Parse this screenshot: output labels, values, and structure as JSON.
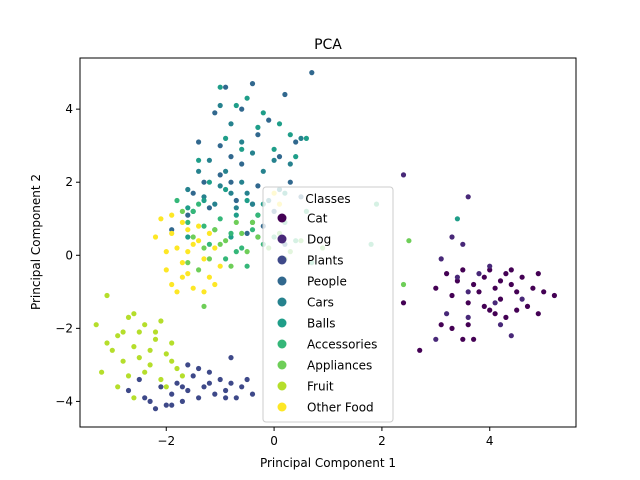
{
  "chart_data": {
    "type": "scatter",
    "title": "PCA",
    "xlabel": "Principal Component 1",
    "ylabel": "Principal Component 2",
    "xlim": [
      -3.6,
      5.6
    ],
    "ylim": [
      -4.7,
      5.4
    ],
    "xticks": [
      -2,
      0,
      2,
      4
    ],
    "yticks": [
      -4,
      -2,
      0,
      2,
      4
    ],
    "grid": false,
    "legend": {
      "title": "Classes",
      "placement": "center"
    },
    "series": [
      {
        "name": "Cat",
        "color": "#440154",
        "points": [
          [
            3.0,
            -0.9
          ],
          [
            3.2,
            -0.5
          ],
          [
            3.3,
            -1.1
          ],
          [
            3.4,
            -0.7
          ],
          [
            3.5,
            -0.4
          ],
          [
            3.6,
            -1.3
          ],
          [
            3.7,
            -0.8
          ],
          [
            3.8,
            -1.0
          ],
          [
            3.9,
            -0.6
          ],
          [
            4.0,
            -0.4
          ],
          [
            4.0,
            -1.5
          ],
          [
            4.1,
            -0.9
          ],
          [
            4.2,
            -1.2
          ],
          [
            4.3,
            -0.5
          ],
          [
            4.3,
            -1.7
          ],
          [
            4.4,
            -0.8
          ],
          [
            4.5,
            -1.0
          ],
          [
            4.6,
            -0.6
          ],
          [
            4.7,
            -1.4
          ],
          [
            4.8,
            -0.9
          ],
          [
            4.9,
            -0.5
          ],
          [
            5.0,
            -1.0
          ],
          [
            5.2,
            -1.1
          ],
          [
            4.5,
            -1.5
          ],
          [
            4.1,
            -1.6
          ],
          [
            3.6,
            -1.9
          ],
          [
            3.5,
            -2.3
          ],
          [
            3.1,
            -1.9
          ],
          [
            2.7,
            -2.6
          ],
          [
            4.9,
            -1.6
          ],
          [
            3.9,
            -1.4
          ],
          [
            4.4,
            -0.4
          ],
          [
            3.7,
            -2.3
          ],
          [
            2.4,
            -1.3
          ],
          [
            4.2,
            -0.7
          ],
          [
            3.3,
            -2.0
          ]
        ]
      },
      {
        "name": "Dog",
        "color": "#482878",
        "points": [
          [
            2.4,
            2.2
          ],
          [
            3.6,
            1.6
          ],
          [
            3.3,
            0.5
          ],
          [
            3.5,
            0.3
          ],
          [
            3.4,
            -0.6
          ],
          [
            3.2,
            -1.6
          ],
          [
            3.6,
            -1.7
          ],
          [
            4.6,
            -1.2
          ],
          [
            4.2,
            -1.9
          ],
          [
            3.0,
            -2.3
          ],
          [
            4.0,
            -0.3
          ],
          [
            3.8,
            -0.5
          ],
          [
            3.1,
            -0.1
          ],
          [
            4.1,
            -1.3
          ],
          [
            3.6,
            -1.0
          ],
          [
            4.4,
            -2.2
          ]
        ]
      },
      {
        "name": "Plants",
        "color": "#3e4989",
        "points": [
          [
            -2.7,
            -3.7
          ],
          [
            -2.5,
            -3.4
          ],
          [
            -2.3,
            -4.0
          ],
          [
            -2.1,
            -3.6
          ],
          [
            -2.0,
            -4.1
          ],
          [
            -1.9,
            -3.8
          ],
          [
            -1.8,
            -3.5
          ],
          [
            -1.7,
            -4.0
          ],
          [
            -1.6,
            -3.7
          ],
          [
            -1.5,
            -3.3
          ],
          [
            -1.4,
            -3.9
          ],
          [
            -1.3,
            -3.6
          ],
          [
            -1.2,
            -3.2
          ],
          [
            -1.1,
            -3.8
          ],
          [
            -1.0,
            -3.4
          ],
          [
            -0.9,
            -3.7
          ],
          [
            -0.8,
            -3.5
          ],
          [
            -0.7,
            -3.9
          ],
          [
            -0.6,
            -3.6
          ],
          [
            -0.5,
            -3.4
          ],
          [
            -0.4,
            -3.8
          ],
          [
            -0.8,
            -2.8
          ],
          [
            -1.6,
            -3.0
          ],
          [
            -2.2,
            -4.2
          ],
          [
            -1.9,
            -4.1
          ],
          [
            -1.4,
            -3.1
          ],
          [
            -1.2,
            -3.5
          ],
          [
            -0.9,
            -3.9
          ],
          [
            -2.4,
            -3.9
          ],
          [
            -1.7,
            -3.6
          ]
        ]
      },
      {
        "name": "People",
        "color": "#31688e",
        "points": [
          [
            -1.1,
            3.9
          ],
          [
            -0.9,
            4.6
          ],
          [
            -0.6,
            4.0
          ],
          [
            -0.4,
            4.7
          ],
          [
            -0.3,
            3.3
          ],
          [
            -0.1,
            3.7
          ],
          [
            0.2,
            4.4
          ],
          [
            0.4,
            3.1
          ],
          [
            0.7,
            5.0
          ],
          [
            -0.8,
            2.7
          ],
          [
            -1.0,
            2.2
          ],
          [
            -1.3,
            2.0
          ],
          [
            -1.5,
            1.7
          ],
          [
            -1.6,
            1.1
          ],
          [
            -1.9,
            0.7
          ],
          [
            -0.7,
            1.5
          ],
          [
            -0.5,
            0.6
          ],
          [
            -0.3,
            1.9
          ],
          [
            0.0,
            1.2
          ],
          [
            0.2,
            0.3
          ],
          [
            -0.2,
            0.8
          ],
          [
            0.5,
            1.6
          ],
          [
            -1.4,
            3.1
          ],
          [
            -0.6,
            2.5
          ],
          [
            -1.2,
            1.3
          ],
          [
            0.3,
            2.0
          ],
          [
            -1.0,
            3.0
          ],
          [
            -0.4,
            1.4
          ],
          [
            -0.8,
            2.0
          ],
          [
            0.1,
            2.7
          ]
        ]
      },
      {
        "name": "Cars",
        "color": "#26828e",
        "points": [
          [
            -1.0,
            4.1
          ],
          [
            -0.8,
            3.6
          ],
          [
            -0.6,
            3.1
          ],
          [
            -0.4,
            2.8
          ],
          [
            -0.2,
            2.3
          ],
          [
            0.0,
            2.6
          ],
          [
            0.3,
            2.5
          ],
          [
            0.5,
            3.2
          ],
          [
            -1.2,
            2.6
          ],
          [
            -1.4,
            2.3
          ],
          [
            -1.6,
            1.8
          ],
          [
            -1.3,
            1.6
          ],
          [
            -1.0,
            1.9
          ],
          [
            -0.7,
            1.3
          ],
          [
            -0.5,
            1.7
          ],
          [
            -0.3,
            1.1
          ],
          [
            -0.1,
            1.5
          ],
          [
            0.1,
            1.8
          ],
          [
            -0.9,
            2.3
          ],
          [
            -0.6,
            2.0
          ],
          [
            -1.1,
            1.4
          ],
          [
            -0.4,
            1.4
          ],
          [
            -1.5,
            1.2
          ],
          [
            -0.8,
            1.7
          ]
        ]
      },
      {
        "name": "Balls",
        "color": "#1f9e89",
        "points": [
          [
            -1.0,
            4.6
          ],
          [
            -0.7,
            4.1
          ],
          [
            -0.5,
            4.3
          ],
          [
            -0.2,
            3.9
          ],
          [
            0.1,
            3.6
          ],
          [
            0.3,
            3.3
          ],
          [
            0.6,
            3.2
          ],
          [
            -0.9,
            3.2
          ],
          [
            -0.6,
            2.9
          ],
          [
            -0.3,
            3.5
          ],
          [
            0.0,
            2.9
          ],
          [
            0.4,
            2.7
          ],
          [
            -1.4,
            2.6
          ],
          [
            -1.2,
            2.0
          ],
          [
            -0.9,
            1.8
          ],
          [
            -0.5,
            1.5
          ],
          [
            -0.2,
            1.4
          ],
          [
            0.2,
            1.7
          ],
          [
            -1.6,
            1.3
          ],
          [
            -1.3,
            1.5
          ],
          [
            -0.7,
            1.1
          ],
          [
            -0.4,
            0.9
          ],
          [
            -1.1,
            0.7
          ],
          [
            -0.8,
            0.5
          ],
          [
            3.4,
            1.0
          ],
          [
            -1.6,
            0.5
          ],
          [
            -0.3,
            0.5
          ]
        ]
      },
      {
        "name": "Accessories",
        "color": "#35b779",
        "points": [
          [
            -1.8,
            1.5
          ],
          [
            -1.5,
            1.2
          ],
          [
            -1.3,
            0.8
          ],
          [
            -1.0,
            1.0
          ],
          [
            -0.8,
            0.6
          ],
          [
            -0.6,
            0.2
          ],
          [
            -0.4,
            0.7
          ],
          [
            -0.2,
            0.3
          ],
          [
            0.0,
            0.5
          ],
          [
            0.2,
            0.9
          ],
          [
            0.4,
            0.4
          ],
          [
            -1.2,
            0.3
          ],
          [
            -0.9,
            -0.1
          ],
          [
            -0.7,
            0.1
          ],
          [
            0.6,
            1.2
          ],
          [
            1.8,
            0.3
          ],
          [
            1.9,
            1.4
          ],
          [
            -1.6,
            0.9
          ],
          [
            -1.4,
            1.4
          ],
          [
            -0.3,
            1.1
          ],
          [
            -0.5,
            -0.3
          ],
          [
            0.7,
            -0.2
          ]
        ]
      },
      {
        "name": "Appliances",
        "color": "#6ece58",
        "points": [
          [
            -1.7,
            1.2
          ],
          [
            -1.5,
            0.5
          ],
          [
            -1.3,
            0.2
          ],
          [
            -1.1,
            0.7
          ],
          [
            -0.9,
            0.4
          ],
          [
            -0.7,
            0.9
          ],
          [
            -0.5,
            0.1
          ],
          [
            -0.3,
            0.5
          ],
          [
            -0.1,
            0.2
          ],
          [
            0.1,
            0.6
          ],
          [
            0.3,
            0.1
          ],
          [
            0.5,
            0.4
          ],
          [
            0.9,
            0.2
          ],
          [
            -1.6,
            -0.2
          ],
          [
            -1.4,
            -0.4
          ],
          [
            -1.2,
            -0.1
          ],
          [
            -1.0,
            0.3
          ],
          [
            -0.8,
            -0.3
          ],
          [
            -0.6,
            0.6
          ],
          [
            2.5,
            0.4
          ],
          [
            2.4,
            -0.8
          ],
          [
            -1.3,
            -1.4
          ],
          [
            -0.4,
            0.9
          ],
          [
            0.2,
            -0.1
          ]
        ]
      },
      {
        "name": "Fruit",
        "color": "#b5de2b",
        "points": [
          [
            -3.1,
            -1.1
          ],
          [
            -3.3,
            -1.9
          ],
          [
            -3.1,
            -2.4
          ],
          [
            -2.9,
            -2.2
          ],
          [
            -2.7,
            -1.7
          ],
          [
            -2.6,
            -2.5
          ],
          [
            -2.5,
            -2.1
          ],
          [
            -2.4,
            -1.9
          ],
          [
            -2.3,
            -2.6
          ],
          [
            -2.2,
            -2.3
          ],
          [
            -2.1,
            -1.8
          ],
          [
            -2.0,
            -2.7
          ],
          [
            -1.9,
            -2.4
          ],
          [
            -1.8,
            -3.1
          ],
          [
            -1.7,
            -3.3
          ],
          [
            -2.8,
            -2.9
          ],
          [
            -2.7,
            -3.3
          ],
          [
            -2.5,
            -2.8
          ],
          [
            -2.3,
            -3.0
          ],
          [
            -2.1,
            -3.4
          ],
          [
            -2.9,
            -3.6
          ],
          [
            -3.2,
            -3.2
          ],
          [
            -2.6,
            -3.9
          ],
          [
            -2.4,
            -3.2
          ],
          [
            -1.9,
            -2.9
          ],
          [
            -2.2,
            -2.1
          ],
          [
            -3.0,
            -2.6
          ],
          [
            -2.8,
            -2.1
          ],
          [
            -2.6,
            -1.6
          ],
          [
            -2.0,
            -3.6
          ]
        ]
      },
      {
        "name": "Other Food",
        "color": "#fde725",
        "points": [
          [
            -2.1,
            1.0
          ],
          [
            -1.9,
            0.6
          ],
          [
            -1.8,
            0.2
          ],
          [
            -1.7,
            -0.2
          ],
          [
            -1.6,
            -0.5
          ],
          [
            -1.5,
            0.3
          ],
          [
            -1.4,
            0.8
          ],
          [
            -1.3,
            -0.1
          ],
          [
            -1.2,
            -0.6
          ],
          [
            -1.1,
            0.2
          ],
          [
            -1.0,
            -0.3
          ],
          [
            -2.0,
            -0.4
          ],
          [
            -1.9,
            -0.8
          ],
          [
            -1.8,
            -1.0
          ],
          [
            -1.7,
            0.9
          ],
          [
            -1.6,
            0.7
          ],
          [
            -1.5,
            -0.9
          ],
          [
            -1.3,
            -1.0
          ],
          [
            -2.2,
            0.5
          ],
          [
            -2.0,
            0.1
          ],
          [
            -1.4,
            0.4
          ],
          [
            -1.2,
            0.6
          ],
          [
            -1.7,
            -0.6
          ],
          [
            -1.9,
            1.1
          ],
          [
            0.0,
            1.7
          ],
          [
            0.1,
            1.4
          ],
          [
            -1.1,
            -0.8
          ],
          [
            -1.6,
            0.1
          ]
        ]
      }
    ]
  }
}
